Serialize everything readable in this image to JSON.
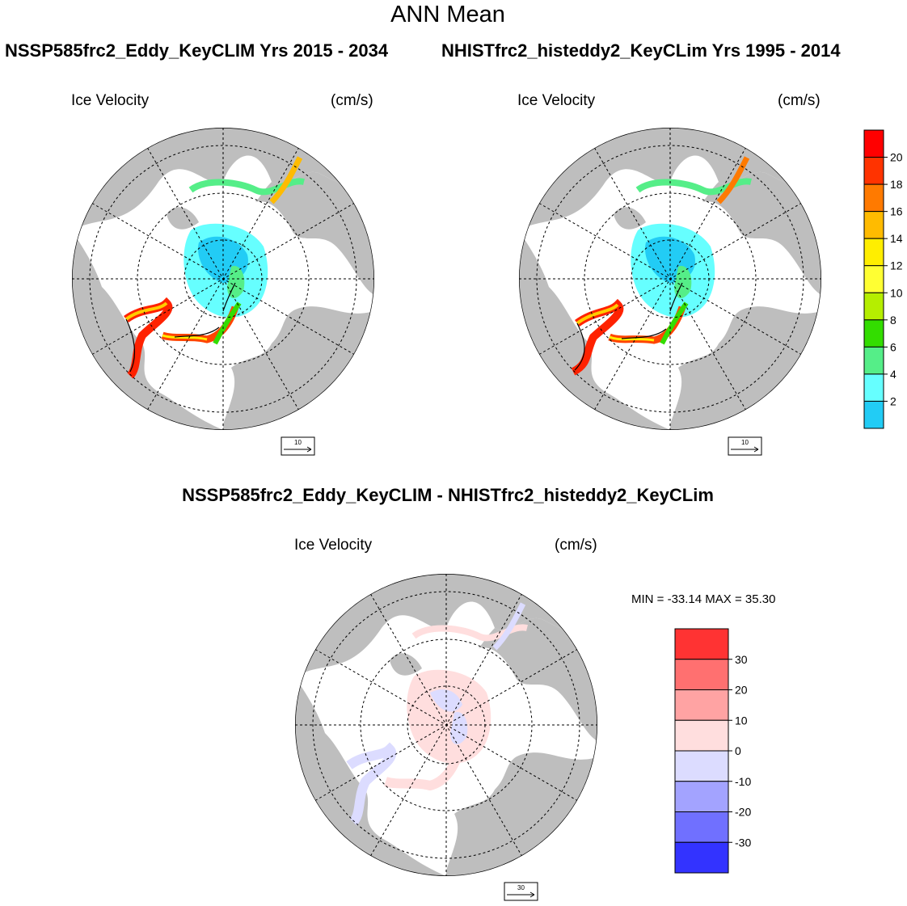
{
  "main_title": "ANN Mean",
  "panels": [
    {
      "header": "NSSP585frc2_Eddy_KeyCLIM  Yrs 2015 - 2034",
      "variable_label": "Ice Velocity",
      "units_label": "(cm/s)",
      "ref_vector": "10"
    },
    {
      "header": "NHISTfrc2_histeddy2_KeyCLim  Yrs 1995 - 2014",
      "variable_label": "Ice Velocity",
      "units_label": "(cm/s)",
      "ref_vector": "10"
    },
    {
      "header": "NSSP585frc2_Eddy_KeyCLIM - NHISTfrc2_histeddy2_KeyCLim",
      "variable_label": "Ice Velocity",
      "units_label": "(cm/s)",
      "ref_vector": "30",
      "min_max": "MIN = -33.14 MAX =  35.30"
    }
  ],
  "colorbar_top": {
    "ticks": [
      "20",
      "18",
      "16",
      "14",
      "12",
      "10",
      "8",
      "6",
      "4",
      "2"
    ],
    "colors": [
      "#ff0000",
      "#ff3300",
      "#ff7a00",
      "#ffbb00",
      "#ffee00",
      "#ffff33",
      "#b5ee00",
      "#33dd00",
      "#55ee88",
      "#66ffff",
      "#22ccf5"
    ]
  },
  "colorbar_diff": {
    "ticks": [
      "30",
      "20",
      "10",
      "0",
      "-10",
      "-20",
      "-30"
    ],
    "colors": [
      "#ff3333",
      "#ff7070",
      "#ffa3a3",
      "#ffdede",
      "#dcdcff",
      "#a3a3ff",
      "#7070ff",
      "#3333ff"
    ]
  },
  "colors": {
    "land": "#bebebe",
    "ocean": "#ffffff"
  }
}
